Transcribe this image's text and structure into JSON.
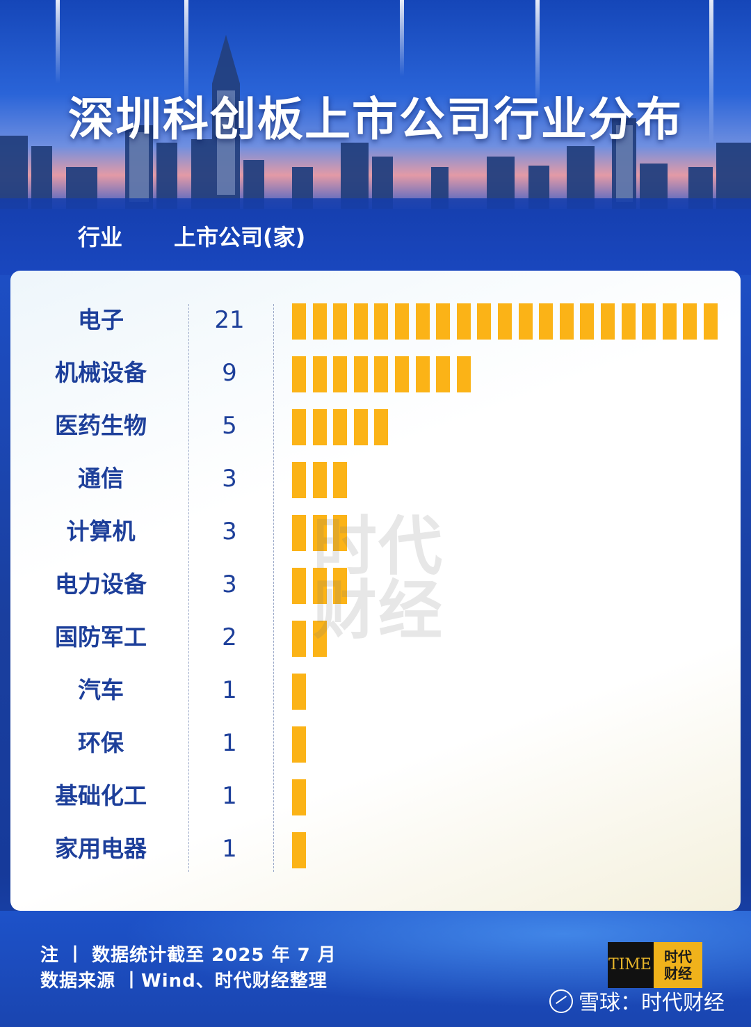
{
  "title": "深圳科创板上市公司行业分布",
  "columns": {
    "industry": "行业",
    "count": "上市公司(家)"
  },
  "chart_data": {
    "type": "bar",
    "orientation": "horizontal",
    "title": "深圳科创板上市公司行业分布",
    "xlabel": "上市公司(家)",
    "ylabel": "行业",
    "categories": [
      "电子",
      "机械设备",
      "医药生物",
      "通信",
      "计算机",
      "电力设备",
      "国防军工",
      "汽车",
      "环保",
      "基础化工",
      "家用电器"
    ],
    "values": [
      21,
      9,
      5,
      3,
      3,
      3,
      2,
      1,
      1,
      1,
      1
    ],
    "value_labels": [
      "21",
      "9",
      "5",
      "3",
      "3",
      "3",
      "2",
      "1",
      "1",
      "1",
      "1"
    ],
    "bar_style": "segmented, one block per company",
    "grid": false
  },
  "watermark": {
    "line1": "时代",
    "line2": "财经"
  },
  "footer": {
    "note": "注 丨 数据统计截至 2025 年 7 月",
    "source": "数据来源 丨Wind、时代财经整理",
    "logo_latin": "TIME",
    "logo_cn_line1": "时代",
    "logo_cn_line2": "财经",
    "xueqiu": "雪球：时代财经"
  },
  "colors": {
    "bar": "#fbb317",
    "text_dark": "#1d3f9a",
    "background": "#1d4fc6",
    "title": "#ffffff"
  }
}
